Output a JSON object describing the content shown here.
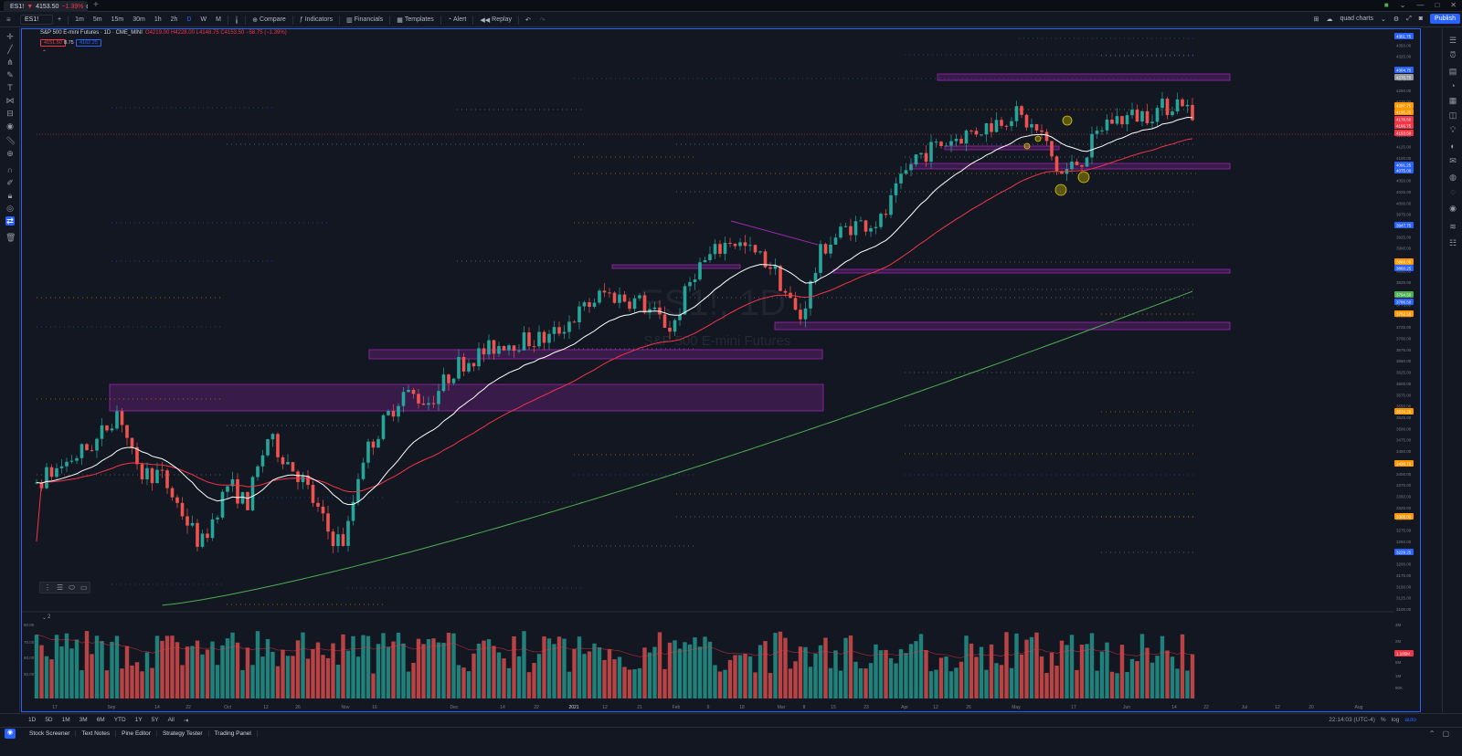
{
  "tab": {
    "symbol": "ES1!",
    "price": "4153.50",
    "change": "−1.39%",
    "extra": "quo"
  },
  "toolbar": {
    "symbol": "ES1!",
    "intervals": [
      "1m",
      "5m",
      "15m",
      "30m",
      "1h",
      "2h",
      "D",
      "W",
      "M"
    ],
    "items": [
      "Compare",
      "Indicators",
      "Financials",
      "Templates",
      "Alert",
      "Replay"
    ],
    "layout_name": "quad charts",
    "publish": "Publish"
  },
  "legend": {
    "title": "S&P 500 E-mini Futures · 1D · CME_MINI",
    "ohlc": "O4219.00 H4228.00 L4148.75 C4153.50 −58.75 (−1.39%)",
    "box1": "4151.50",
    "box1b": "8.75",
    "box2": "4162.25"
  },
  "watermark": {
    "symbol": "ES1!, 1D",
    "name": "S&P 500 E-mini Futures"
  },
  "colors": {
    "up": "#26a69a",
    "down": "#ef5350",
    "zone": "#9c27b0",
    "ema_fast": "#ffffff",
    "ema_mid": "#f23645",
    "ema_slow": "#4caf50",
    "accent": "#2962ff"
  },
  "axis": {
    "price_labels": [
      "4375.00",
      "4350.00",
      "4325.00",
      "4300.00",
      "4275.00",
      "4250.00",
      "4225.00",
      "4200.00",
      "4175.00",
      "4150.00",
      "4125.00",
      "4100.00",
      "4075.00",
      "4050.00",
      "4025.00",
      "4000.00",
      "3975.00",
      "3950.00",
      "3925.00",
      "3900.00",
      "3875.00",
      "3850.00",
      "3825.00",
      "3800.00",
      "3775.00",
      "3750.00",
      "3725.00",
      "3700.00",
      "3675.00",
      "3650.00",
      "3625.00",
      "3600.00",
      "3575.00",
      "3550.00",
      "3525.00",
      "3500.00",
      "3475.00",
      "3450.00",
      "3425.00",
      "3400.00",
      "3375.00",
      "3350.00",
      "3325.00",
      "3300.00",
      "3275.00",
      "3250.00",
      "3225.00",
      "3200.00",
      "3175.00",
      "3150.00",
      "3125.00",
      "3100.00"
    ],
    "time_labels": [
      "17",
      "Sep",
      "14",
      "22",
      "Oct",
      "12",
      "26",
      "Nov",
      "16",
      "Dec",
      "14",
      "22",
      "2021",
      "12",
      "21",
      "Feb",
      "9",
      "18",
      "Mar",
      "8",
      "15",
      "23",
      "Apr",
      "12",
      "26",
      "May",
      "17",
      "Jun",
      "14",
      "22",
      "Jul",
      "12",
      "20",
      "Aug"
    ],
    "volume_labels": [
      "3M",
      "2M",
      "1M",
      "5M",
      "90K"
    ],
    "volume_left_labels": [
      "80.00",
      "70.00",
      "60.00",
      "50.00"
    ]
  },
  "price_tags": [
    {
      "text": "4351.75",
      "color": "#2962ff"
    },
    {
      "text": "4304.75",
      "color": "#2962ff"
    },
    {
      "text": "4276.75",
      "color": "#9598a1"
    },
    {
      "text": "4207.75",
      "color": "#ff9800"
    },
    {
      "text": "4195.25",
      "color": "#ff9800"
    },
    {
      "text": "4176.50",
      "color": "#f23645"
    },
    {
      "text": "4166.75",
      "color": "#f23645"
    },
    {
      "text": "4153.50",
      "color": "#f23645"
    },
    {
      "text": "4091.25",
      "color": "#2962ff"
    },
    {
      "text": "4075.00",
      "color": "#2962ff"
    },
    {
      "text": "3947.75",
      "color": "#2962ff"
    },
    {
      "text": "3868.00",
      "color": "#ff9800"
    },
    {
      "text": "3860.25",
      "color": "#2962ff"
    },
    {
      "text": "3794.50",
      "color": "#4caf50"
    },
    {
      "text": "3786.50",
      "color": "#2962ff"
    },
    {
      "text": "3752.50",
      "color": "#ff9800"
    },
    {
      "text": "3534.25",
      "color": "#ff9800"
    },
    {
      "text": "3420.75",
      "color": "#ff9800"
    },
    {
      "text": "3305.00",
      "color": "#ff9800"
    },
    {
      "text": "3229.25",
      "color": "#2962ff"
    },
    {
      "text": "1.185M",
      "color": "#f23645"
    }
  ],
  "bottom": {
    "ranges": [
      "1D",
      "5D",
      "1M",
      "3M",
      "6M",
      "YTD",
      "1Y",
      "5Y",
      "All"
    ],
    "time": "22:14:03 (UTC-4)",
    "opts": [
      "%",
      "log",
      "auto"
    ]
  },
  "panels": [
    "Stock Screener",
    "Text Notes",
    "Pine Editor",
    "Strategy Tester",
    "Trading Panel"
  ],
  "pane_label": "2"
}
